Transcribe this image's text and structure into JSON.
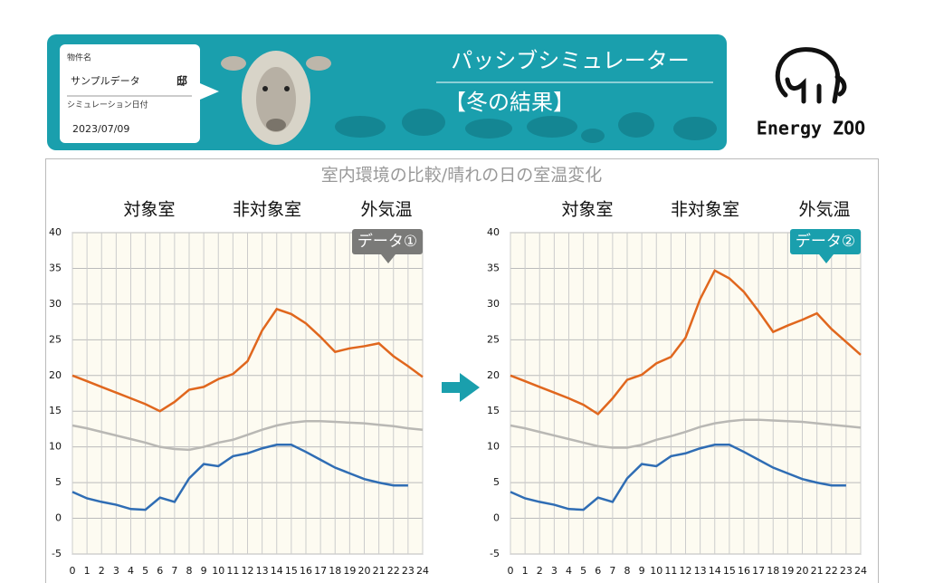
{
  "header": {
    "property_label": "物件名",
    "property_name": "サンプルデータ",
    "property_suffix": "邸",
    "date_label": "シミュレーション日付",
    "date": "2023/07/09",
    "app_title": "パッシブシミュレーター",
    "result_title": "【冬の結果】",
    "logo": "Energy ZOO"
  },
  "panel_title": "室内環境の比較/晴れの日の室温変化",
  "chart_data": [
    {
      "type": "line",
      "tag": "データ①",
      "tag_color": "#7a7a78",
      "x": [
        0,
        1,
        2,
        3,
        4,
        5,
        6,
        7,
        8,
        9,
        10,
        11,
        12,
        13,
        14,
        15,
        16,
        17,
        18,
        19,
        20,
        21,
        22,
        23,
        24
      ],
      "xlim": [
        0,
        24
      ],
      "xticks": [
        0,
        1,
        2,
        3,
        4,
        5,
        6,
        7,
        8,
        9,
        10,
        11,
        12,
        13,
        14,
        15,
        16,
        17,
        18,
        19,
        20,
        21,
        22,
        23,
        24
      ],
      "ylim": [
        -5,
        40
      ],
      "yticks": [
        -5,
        0,
        5,
        10,
        15,
        20,
        25,
        30,
        35,
        40
      ],
      "grid": true,
      "series": [
        {
          "name": "対象室",
          "color": "#e0671e",
          "values": [
            20,
            19.2,
            18.4,
            17.6,
            16.8,
            16,
            15,
            16.3,
            18,
            18.4,
            19.5,
            20.2,
            22,
            26.3,
            29.3,
            28.6,
            27.3,
            25.4,
            23.3,
            23.8,
            24.1,
            24.5,
            22.7,
            21.3,
            19.8
          ]
        },
        {
          "name": "非対象室",
          "color": "#b9b8b4",
          "values": [
            13,
            12.6,
            12.1,
            11.6,
            11.1,
            10.6,
            10,
            9.7,
            9.6,
            10,
            10.6,
            11,
            11.7,
            12.4,
            13,
            13.4,
            13.6,
            13.6,
            13.5,
            13.4,
            13.3,
            13.1,
            12.9,
            12.6,
            12.4
          ]
        },
        {
          "name": "外気温",
          "color": "#2f6db4",
          "values": [
            3.7,
            2.8,
            2.3,
            1.9,
            1.3,
            1.2,
            2.9,
            2.3,
            5.6,
            7.6,
            7.3,
            8.7,
            9.1,
            9.8,
            10.3,
            10.3,
            9.3,
            8.2,
            7.1,
            6.3,
            5.5,
            5,
            4.6,
            4.6,
            null
          ]
        }
      ]
    },
    {
      "type": "line",
      "tag": "データ②",
      "tag_color": "#1a9fad",
      "x": [
        0,
        1,
        2,
        3,
        4,
        5,
        6,
        7,
        8,
        9,
        10,
        11,
        12,
        13,
        14,
        15,
        16,
        17,
        18,
        19,
        20,
        21,
        22,
        23,
        24
      ],
      "xlim": [
        0,
        24
      ],
      "xticks": [
        0,
        1,
        2,
        3,
        4,
        5,
        6,
        7,
        8,
        9,
        10,
        11,
        12,
        13,
        14,
        15,
        16,
        17,
        18,
        19,
        20,
        21,
        22,
        23,
        24
      ],
      "ylim": [
        -5,
        40
      ],
      "yticks": [
        -5,
        0,
        5,
        10,
        15,
        20,
        25,
        30,
        35,
        40
      ],
      "grid": true,
      "series": [
        {
          "name": "対象室",
          "color": "#e0671e",
          "values": [
            20,
            19.2,
            18.4,
            17.6,
            16.8,
            15.9,
            14.6,
            16.8,
            19.4,
            20.1,
            21.7,
            22.6,
            25.3,
            30.7,
            34.7,
            33.6,
            31.7,
            29,
            26.1,
            27,
            27.8,
            28.7,
            26.5,
            24.7,
            22.9
          ]
        },
        {
          "name": "非対象室",
          "color": "#b9b8b4",
          "values": [
            13,
            12.6,
            12.1,
            11.6,
            11.1,
            10.6,
            10.1,
            9.9,
            9.9,
            10.3,
            11,
            11.5,
            12.1,
            12.8,
            13.3,
            13.6,
            13.8,
            13.8,
            13.7,
            13.6,
            13.5,
            13.3,
            13.1,
            12.9,
            12.7
          ]
        },
        {
          "name": "外気温",
          "color": "#2f6db4",
          "values": [
            3.7,
            2.8,
            2.3,
            1.9,
            1.3,
            1.2,
            2.9,
            2.3,
            5.6,
            7.6,
            7.3,
            8.7,
            9.1,
            9.8,
            10.3,
            10.3,
            9.3,
            8.2,
            7.1,
            6.3,
            5.5,
            5,
            4.6,
            4.6,
            null
          ]
        }
      ]
    }
  ]
}
